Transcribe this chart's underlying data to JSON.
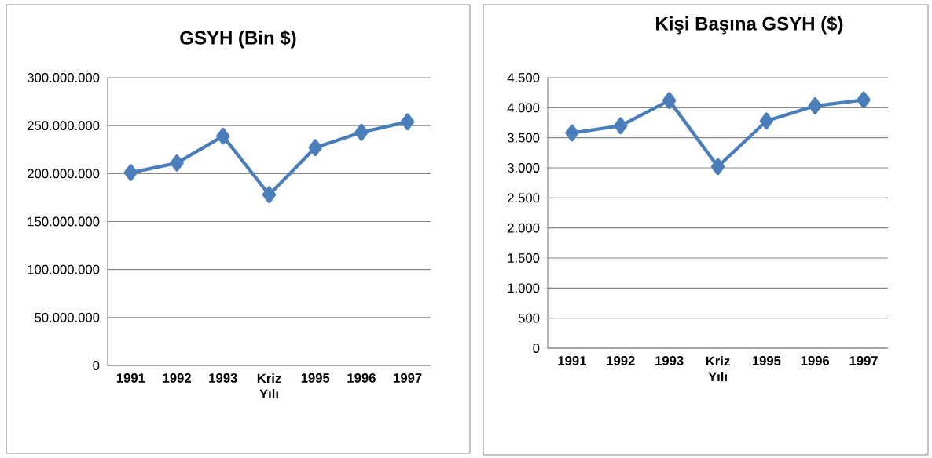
{
  "chart_data": [
    {
      "type": "line",
      "title": "GSYH (Bin $)",
      "categories": [
        "1991",
        "1992",
        "1993",
        "Kriz Yılı",
        "1995",
        "1996",
        "1997"
      ],
      "values": [
        201000000,
        211000000,
        239000000,
        178000000,
        227000000,
        243000000,
        254000000
      ],
      "color": "#4a7ebb",
      "marker": "diamond",
      "grid": "y",
      "ylim": [
        0,
        300000000
      ],
      "yticks": [
        {
          "value": 0,
          "label": "0"
        },
        {
          "value": 50000000,
          "label": "50.000.000"
        },
        {
          "value": 100000000,
          "label": "100.000.000"
        },
        {
          "value": 150000000,
          "label": "150.000.000"
        },
        {
          "value": 200000000,
          "label": "200.000.000"
        },
        {
          "value": 250000000,
          "label": "250.000.000"
        },
        {
          "value": 300000000,
          "label": "300.000.000"
        }
      ]
    },
    {
      "type": "line",
      "title": "Kişi Başına GSYH ($)",
      "categories": [
        "1991",
        "1992",
        "1993",
        "Kriz Yılı",
        "1995",
        "1996",
        "1997"
      ],
      "values": [
        3580,
        3700,
        4120,
        3020,
        3780,
        4030,
        4130
      ],
      "color": "#4a7ebb",
      "marker": "diamond",
      "grid": "y",
      "ylim": [
        0,
        4500
      ],
      "yticks": [
        {
          "value": 0,
          "label": "0"
        },
        {
          "value": 500,
          "label": "500"
        },
        {
          "value": 1000,
          "label": "1.000"
        },
        {
          "value": 1500,
          "label": "1.500"
        },
        {
          "value": 2000,
          "label": "2.000"
        },
        {
          "value": 2500,
          "label": "2.500"
        },
        {
          "value": 3000,
          "label": "3.000"
        },
        {
          "value": 3500,
          "label": "3.500"
        },
        {
          "value": 4000,
          "label": "4.000"
        },
        {
          "value": 4500,
          "label": "4.500"
        }
      ]
    }
  ]
}
